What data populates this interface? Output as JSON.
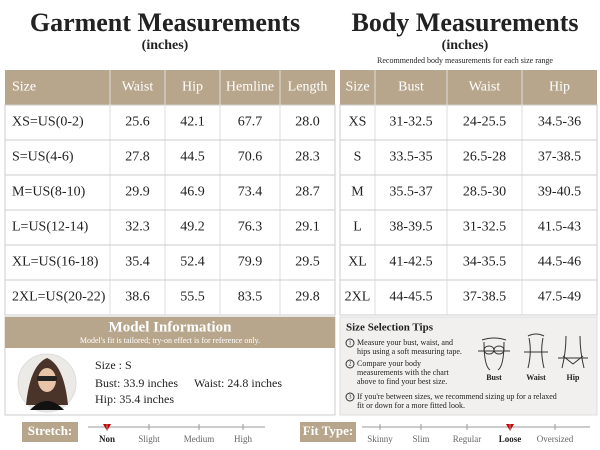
{
  "garment": {
    "title": "Garment Measurements",
    "unit": "(inches)",
    "table": {
      "header": [
        "Size",
        "Waist",
        "Hip",
        "Hemline",
        "Length"
      ],
      "rows": [
        [
          "XS=US(0-2)",
          "25.6",
          "42.1",
          "67.7",
          "28.0"
        ],
        [
          "S=US(4-6)",
          "27.8",
          "44.5",
          "70.6",
          "28.3"
        ],
        [
          "M=US(8-10)",
          "29.9",
          "46.9",
          "73.4",
          "28.7"
        ],
        [
          "L=US(12-14)",
          "32.3",
          "49.2",
          "76.3",
          "29.1"
        ],
        [
          "XL=US(16-18)",
          "35.4",
          "52.4",
          "79.9",
          "29.5"
        ],
        [
          "2XL=US(20-22)",
          "38.6",
          "55.5",
          "83.5",
          "29.8"
        ]
      ]
    }
  },
  "body": {
    "title": "Body Measurements",
    "unit": "(inches)",
    "subtitle": "Recommended body measurements for each size range",
    "table": {
      "header": [
        "Size",
        "Bust",
        "Waist",
        "Hip"
      ],
      "rows": [
        [
          "XS",
          "31-32.5",
          "24-25.5",
          "34.5-36"
        ],
        [
          "S",
          "33.5-35",
          "26.5-28",
          "37-38.5"
        ],
        [
          "M",
          "35.5-37",
          "28.5-30",
          "39-40.5"
        ],
        [
          "L",
          "38-39.5",
          "31-32.5",
          "41.5-43"
        ],
        [
          "XL",
          "41-42.5",
          "34-35.5",
          "44.5-46"
        ],
        [
          "2XL",
          "44-45.5",
          "37-38.5",
          "47.5-49"
        ]
      ]
    }
  },
  "model": {
    "title": "Model Information",
    "note": "Model's fit is tailored; try-on effect is for reference only.",
    "size": "Size : S",
    "bust": "Bust: 33.9 inches",
    "waist": "Waist: 24.8 inches",
    "hip": "Hip: 35.4 inches"
  },
  "tips": {
    "title": "Size Selection Tips",
    "items": [
      {
        "number": "1",
        "lines": [
          "Measure your bust, waist, and",
          "hips using a soft measuring tape."
        ]
      },
      {
        "number": "2",
        "lines": [
          "Compare your body",
          "measurements with the chart",
          "above to find your best size."
        ]
      },
      {
        "number": "3",
        "lines": [
          "If you're between sizes, we recommend sizing up for a relaxed",
          "fit or down for a more fitted look."
        ]
      }
    ],
    "figures": [
      "Bust",
      "Waist",
      "Hip"
    ]
  },
  "stretch": {
    "label": "Stretch:",
    "options": [
      "Non",
      "Slight",
      "Medium",
      "High"
    ]
  },
  "fit": {
    "label": "Fit Type:",
    "options": [
      "Skinny",
      "Slim",
      "Regular",
      "Loose",
      "Oversized"
    ]
  }
}
